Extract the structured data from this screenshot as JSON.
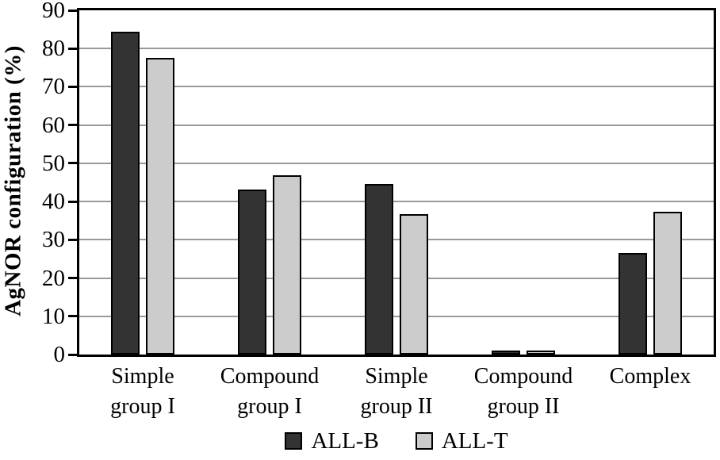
{
  "chart_data": {
    "type": "bar",
    "title": "",
    "xlabel": "",
    "ylabel": "AgNOR configuration (%)",
    "ylim": [
      0,
      90
    ],
    "yticks": [
      0,
      10,
      20,
      30,
      40,
      50,
      60,
      70,
      80,
      90
    ],
    "grid": true,
    "legend_position": "bottom-center",
    "categories": [
      "Simple group I",
      "Compound group I",
      "Simple group II",
      "Compound group II",
      "Complex"
    ],
    "category_label_lines": [
      [
        "Simple",
        "group I"
      ],
      [
        "Compound",
        "group I"
      ],
      [
        "Simple",
        "group II"
      ],
      [
        "Compound",
        "group II"
      ],
      [
        "Complex"
      ]
    ],
    "series": [
      {
        "name": "ALL-B",
        "color": "#333333",
        "values": [
          84.5,
          43.2,
          44.6,
          0.6,
          26.5
        ]
      },
      {
        "name": "ALL-T",
        "color": "#cccccc",
        "values": [
          77.5,
          46.8,
          36.8,
          0.9,
          37.3
        ]
      }
    ],
    "colors": {
      "axis": "#000000",
      "grid": "#999999",
      "bar_border": "#000000",
      "background": "#ffffff",
      "text": "#000000"
    }
  }
}
